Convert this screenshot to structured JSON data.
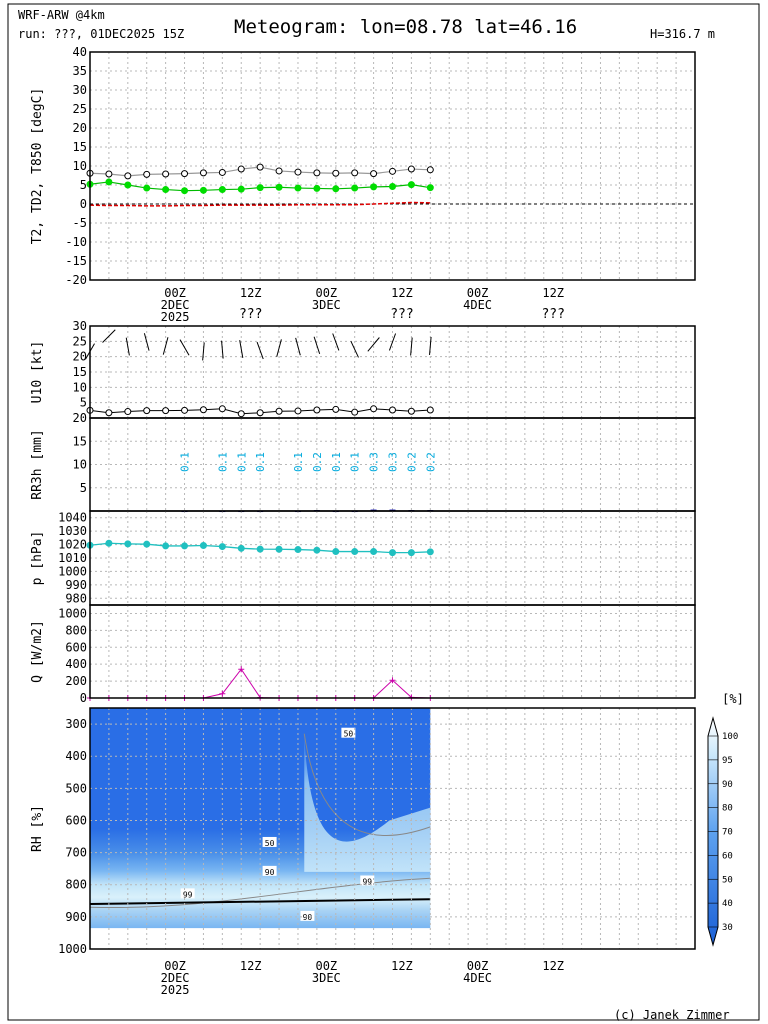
{
  "header": {
    "model": "WRF-ARW @4km",
    "run": "run: ???, 01DEC2025 15Z",
    "title": "Meteogram: lon=08.78 lat=46.16",
    "height": "H=316.7 m",
    "credit": "(c) Janek Zimmer"
  },
  "time_axis": {
    "hours": [
      0,
      6,
      12,
      18,
      24,
      30,
      36,
      42,
      48,
      54,
      60,
      66,
      72,
      78,
      84,
      90,
      96,
      102,
      108,
      114,
      120,
      126,
      132,
      138,
      144,
      150,
      156,
      162,
      168,
      174,
      180,
      186,
      192
    ],
    "tick_labels": [
      {
        "hour": 27,
        "lines": [
          "00Z",
          "2DEC",
          "2025"
        ]
      },
      {
        "hour": 51,
        "lines": [
          "12Z"
        ]
      },
      {
        "hour": 75,
        "lines": [
          "00Z",
          "3DEC"
        ]
      },
      {
        "hour": 99,
        "lines": [
          "12Z"
        ]
      },
      {
        "hour": 123,
        "lines": [
          "00Z",
          "4DEC"
        ]
      },
      {
        "hour": 147,
        "lines": [
          "12Z"
        ]
      }
    ],
    "unknown_marks": [
      {
        "hour": 51,
        "text": "???"
      },
      {
        "hour": 99,
        "text": "???"
      },
      {
        "hour": 147,
        "text": "???"
      }
    ]
  },
  "chart_data": [
    {
      "type": "line",
      "panel": "temperature",
      "ylabel": "T2, TD2, T850 [degC]",
      "ylim": [
        -20,
        40
      ],
      "yticks": [
        -20,
        -15,
        -10,
        -5,
        0,
        5,
        10,
        15,
        20,
        25,
        30,
        35,
        40
      ],
      "grid": true,
      "x_hours": [
        0,
        6,
        12,
        18,
        24,
        30,
        36,
        42,
        48,
        54,
        60,
        66,
        72,
        78,
        84,
        90,
        96,
        102,
        108
      ],
      "series": [
        {
          "values": [
            8.1,
            7.9,
            7.4,
            7.8,
            7.9,
            8.0,
            8.2,
            8.3,
            9.2,
            9.7,
            8.7,
            8.4,
            8.2,
            8.1,
            8.2,
            8.0,
            8.6,
            9.2,
            9.0
          ],
          "color": "#000000",
          "line": "#999999",
          "marker": "open-circle"
        },
        {
          "values": [
            5.2,
            5.8,
            5.0,
            4.2,
            3.8,
            3.5,
            3.6,
            3.8,
            3.9,
            4.3,
            4.4,
            4.2,
            4.1,
            4.0,
            4.2,
            4.5,
            4.6,
            5.1,
            4.3
          ],
          "color": "#00dd00",
          "line": "#00bb00",
          "marker": "filled-circle"
        },
        {
          "values": [
            -0.3,
            -0.4,
            -0.4,
            -0.5,
            -0.5,
            -0.4,
            -0.4,
            -0.3,
            -0.3,
            -0.3,
            -0.3,
            -0.2,
            -0.2,
            -0.2,
            -0.2,
            0.0,
            0.2,
            0.4,
            0.3
          ],
          "color": "#dd0000",
          "line": "#dd0000",
          "marker": "none",
          "dashed": true
        }
      ]
    },
    {
      "type": "line",
      "panel": "wind",
      "ylabel": "U10 [kt]",
      "ylim": [
        0,
        30
      ],
      "yticks": [
        5,
        10,
        15,
        20,
        25,
        30
      ],
      "grid": true,
      "x_hours": [
        0,
        6,
        12,
        18,
        24,
        30,
        36,
        42,
        48,
        54,
        60,
        66,
        72,
        78,
        84,
        90,
        96,
        102,
        108
      ],
      "speed": [
        2.5,
        1.7,
        2.1,
        2.4,
        2.4,
        2.5,
        2.7,
        3.0,
        1.4,
        1.7,
        2.2,
        2.3,
        2.6,
        2.8,
        1.9,
        3.0,
        2.6,
        2.2,
        2.6
      ],
      "barb_heights_kt": [
        21.7,
        26.7,
        23.3,
        24.8,
        23.5,
        23.0,
        21.7,
        22.3,
        22.5,
        22.0,
        22.8,
        23.3,
        23.7,
        24.8,
        22.4,
        24.0,
        24.8,
        23.3,
        23.5
      ],
      "barb_directions_deg": [
        120,
        135,
        80,
        75,
        105,
        60,
        95,
        85,
        80,
        70,
        105,
        75,
        72,
        70,
        65,
        130,
        110,
        95,
        95
      ]
    },
    {
      "type": "bar",
      "panel": "precipitation",
      "ylabel": "RR3h [mm]",
      "ylim": [
        0,
        20
      ],
      "yticks": [
        5,
        10,
        15,
        20
      ],
      "grid": true,
      "x_hours": [
        30,
        42,
        48,
        54,
        66,
        72,
        78,
        84,
        90,
        96,
        102,
        108
      ],
      "values": [
        0.1,
        0.1,
        0.1,
        0.1,
        0.1,
        0.2,
        0.1,
        0.1,
        0.3,
        0.3,
        0.2,
        0.2
      ],
      "labels": [
        "0.1",
        "0.1",
        "0.1",
        "0.1",
        "0.1",
        "0.2",
        "0.1",
        "0.1",
        "0.3",
        "0.3",
        "0.2",
        "0.2"
      ],
      "label_color": "#00aadd",
      "bar_color": "#0000aa"
    },
    {
      "type": "line",
      "panel": "pressure",
      "ylabel": "p [hPa]",
      "ylim": [
        975,
        1045
      ],
      "yticks": [
        980,
        990,
        1000,
        1010,
        1020,
        1030,
        1040
      ],
      "grid": true,
      "x_hours": [
        0,
        6,
        12,
        18,
        24,
        30,
        36,
        42,
        48,
        54,
        60,
        66,
        72,
        78,
        84,
        90,
        96,
        102,
        108
      ],
      "series": [
        {
          "values": [
            1019.5,
            1021.0,
            1020.5,
            1020.3,
            1019.0,
            1019.0,
            1019.3,
            1018.5,
            1017.2,
            1016.6,
            1016.5,
            1016.3,
            1015.8,
            1014.8,
            1014.8,
            1014.8,
            1014.0,
            1014.0,
            1014.6
          ],
          "color": "#20c0c0"
        }
      ]
    },
    {
      "type": "line",
      "panel": "radiation",
      "ylabel": "Q [W/m2]",
      "ylim": [
        0,
        1100
      ],
      "yticks": [
        0,
        200,
        400,
        600,
        800,
        1000
      ],
      "grid": true,
      "x_hours": [
        0,
        6,
        12,
        18,
        24,
        30,
        36,
        42,
        48,
        54,
        60,
        66,
        72,
        78,
        84,
        90,
        96,
        102,
        108
      ],
      "series": [
        {
          "values": [
            0,
            0,
            0,
            0,
            0,
            0,
            0,
            50,
            340,
            5,
            0,
            0,
            0,
            0,
            0,
            0,
            210,
            8,
            0
          ],
          "color": "#cc00aa"
        }
      ]
    },
    {
      "type": "heatmap",
      "panel": "humidity",
      "ylabel": "RH [%]",
      "yticks": [
        300,
        400,
        500,
        600,
        700,
        800,
        900,
        1000
      ],
      "ylim": [
        1000,
        250
      ],
      "colorbar_unit": "[%]",
      "colorbar_ticks": [
        30,
        40,
        50,
        60,
        70,
        80,
        90,
        95,
        100
      ],
      "colorbar_colors": [
        "#1a6fe0",
        "#2f7ee6",
        "#4690eb",
        "#5ea2ef",
        "#79b6f2",
        "#98c9f5",
        "#b6dbf8",
        "#d4ebfa",
        "#ecf7fd"
      ],
      "x_hours": [
        0,
        108
      ],
      "contour_labels": [
        {
          "text": "50",
          "hour": 82,
          "p": 330
        },
        {
          "text": "50",
          "hour": 57,
          "p": 670
        },
        {
          "text": "90",
          "hour": 57,
          "p": 760
        },
        {
          "text": "99",
          "hour": 31,
          "p": 830
        },
        {
          "text": "99",
          "hour": 88,
          "p": 790
        },
        {
          "text": "90",
          "hour": 69,
          "p": 900
        }
      ]
    }
  ]
}
